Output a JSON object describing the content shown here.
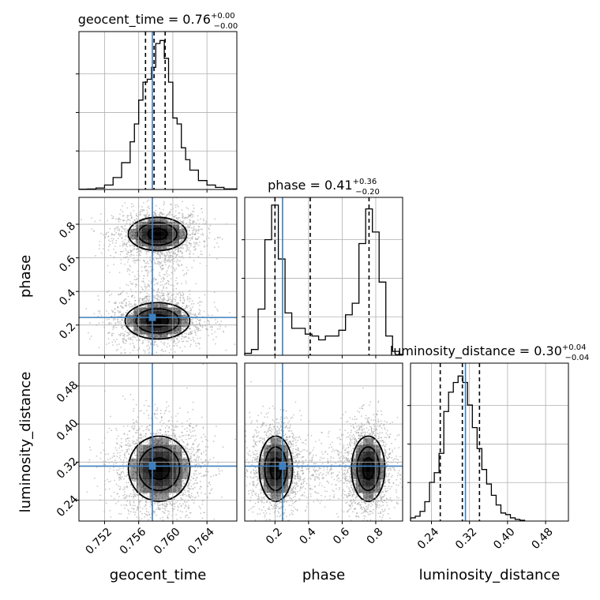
{
  "chart_data": {
    "type": "corner",
    "parameters": [
      {
        "name": "geocent_time",
        "title": "geocent_time = 0.76",
        "title_plus": "+0.00",
        "title_minus": "−0.00",
        "range": [
          0.749,
          0.7675
        ],
        "ticks": [
          0.752,
          0.756,
          0.76,
          0.764
        ],
        "tick_labels": [
          "0.752",
          "0.756",
          "0.760",
          "0.764"
        ],
        "quantiles": [
          0.7568,
          0.7578,
          0.7591
        ],
        "truth": 0.7576,
        "hist": {
          "edges": [
            0.749,
            0.75,
            0.751,
            0.752,
            0.753,
            0.754,
            0.755,
            0.7555,
            0.756,
            0.7565,
            0.757,
            0.7575,
            0.758,
            0.7585,
            0.759,
            0.7595,
            0.76,
            0.7605,
            0.761,
            0.7615,
            0.762,
            0.763,
            0.764,
            0.765,
            0.766,
            0.7675
          ],
          "counts": [
            0.1,
            0.15,
            0.5,
            1.5,
            4.0,
            9.0,
            16.0,
            22.0,
            30.0,
            36.0,
            37.0,
            41.0,
            49.0,
            50.0,
            44.0,
            36.0,
            24.0,
            22.0,
            14.0,
            10.0,
            6.5,
            3.0,
            1.5,
            0.7,
            0.2
          ],
          "ymax": 53
        }
      },
      {
        "name": "phase",
        "title": "phase = 0.41",
        "title_plus": "+0.36",
        "title_minus": "−0.20",
        "range": [
          0.02,
          0.96
        ],
        "ticks": [
          0.2,
          0.4,
          0.6,
          0.8
        ],
        "tick_labels": [
          "0.2",
          "0.4",
          "0.6",
          "0.8"
        ],
        "quantiles": [
          0.2,
          0.41,
          0.76
        ],
        "truth": 0.245,
        "hist": {
          "edges": [
            0.02,
            0.06,
            0.1,
            0.14,
            0.18,
            0.22,
            0.26,
            0.3,
            0.34,
            0.38,
            0.42,
            0.46,
            0.5,
            0.54,
            0.58,
            0.62,
            0.66,
            0.7,
            0.74,
            0.78,
            0.82,
            0.86,
            0.9,
            0.94,
            0.96
          ],
          "counts": [
            1,
            3,
            24,
            60,
            78,
            50,
            22,
            14,
            14,
            11,
            10,
            8,
            10,
            10,
            13,
            21,
            27,
            58,
            76,
            64,
            38,
            10,
            2,
            0.5
          ],
          "ymax": 82
        }
      },
      {
        "name": "luminosity_distance",
        "title": "luminosity_distance = 0.30",
        "title_plus": "+0.04",
        "title_minus": "−0.04",
        "range": [
          0.196,
          0.528
        ],
        "ticks": [
          0.24,
          0.32,
          0.4,
          0.48
        ],
        "tick_labels": [
          "0.24",
          "0.32",
          "0.40",
          "0.48"
        ],
        "quantiles": [
          0.2585,
          0.305,
          0.341
        ],
        "truth": 0.3115,
        "hist": {
          "edges": [
            0.196,
            0.206,
            0.216,
            0.226,
            0.236,
            0.246,
            0.256,
            0.266,
            0.276,
            0.286,
            0.296,
            0.306,
            0.316,
            0.326,
            0.336,
            0.346,
            0.356,
            0.366,
            0.376,
            0.386,
            0.396,
            0.406,
            0.416,
            0.426,
            0.436
          ],
          "counts": [
            2,
            3,
            6,
            12,
            24,
            30,
            42,
            68,
            80,
            86,
            90,
            86,
            72,
            58,
            45,
            32,
            23,
            16,
            10,
            5,
            4,
            2,
            1,
            0.5
          ],
          "ymax": 98
        }
      }
    ],
    "pairs": [
      {
        "x": "geocent_time",
        "y": "phase",
        "clusters": [
          {
            "cx": 0.7582,
            "cy": 0.742,
            "sx": 0.0019,
            "sy": 0.055
          },
          {
            "cx": 0.7582,
            "cy": 0.225,
            "sx": 0.0021,
            "sy": 0.06
          }
        ]
      },
      {
        "x": "geocent_time",
        "y": "luminosity_distance",
        "clusters": [
          {
            "cx": 0.7584,
            "cy": 0.306,
            "sx": 0.002,
            "sy": 0.038
          }
        ]
      },
      {
        "x": "phase",
        "y": "luminosity_distance",
        "clusters": [
          {
            "cx": 0.205,
            "cy": 0.306,
            "sx": 0.055,
            "sy": 0.038
          },
          {
            "cx": 0.755,
            "cy": 0.306,
            "sx": 0.055,
            "sy": 0.038
          }
        ]
      }
    ],
    "axis_labels": {
      "x": [
        "geocent_time",
        "phase",
        "luminosity_distance"
      ],
      "y": [
        "phase",
        "luminosity_distance"
      ]
    },
    "grid": true,
    "truth_color": "#3f7fbf",
    "line_color": "#000000"
  }
}
